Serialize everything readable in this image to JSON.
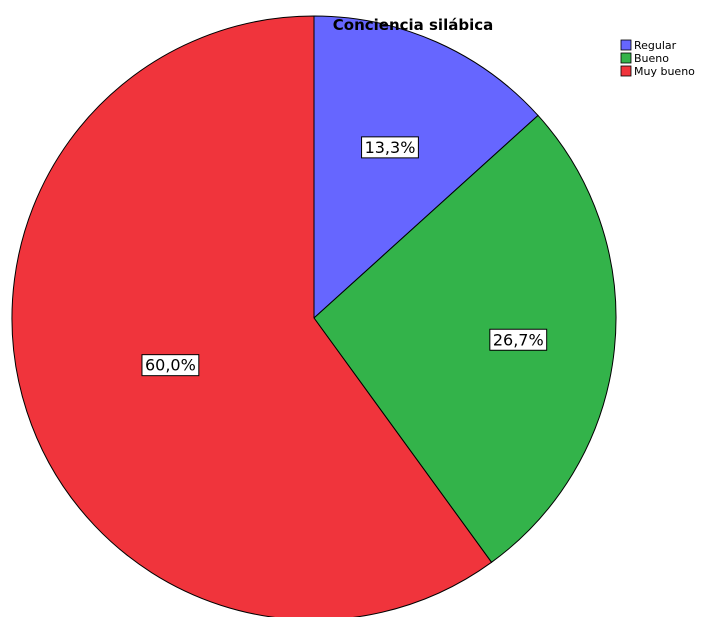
{
  "chart_data": {
    "type": "pie",
    "title": "Conciencia silábica",
    "categories": [
      "Regular",
      "Bueno",
      "Muy bueno"
    ],
    "values": [
      13.3,
      26.7,
      60.0
    ],
    "labels": [
      "13,3%",
      "26,7%",
      "60,0%"
    ],
    "colors": [
      "#6666ff",
      "#33b34a",
      "#f0343c"
    ],
    "legend_position": "top-right",
    "start_angle_deg": 0,
    "direction": "clockwise"
  }
}
